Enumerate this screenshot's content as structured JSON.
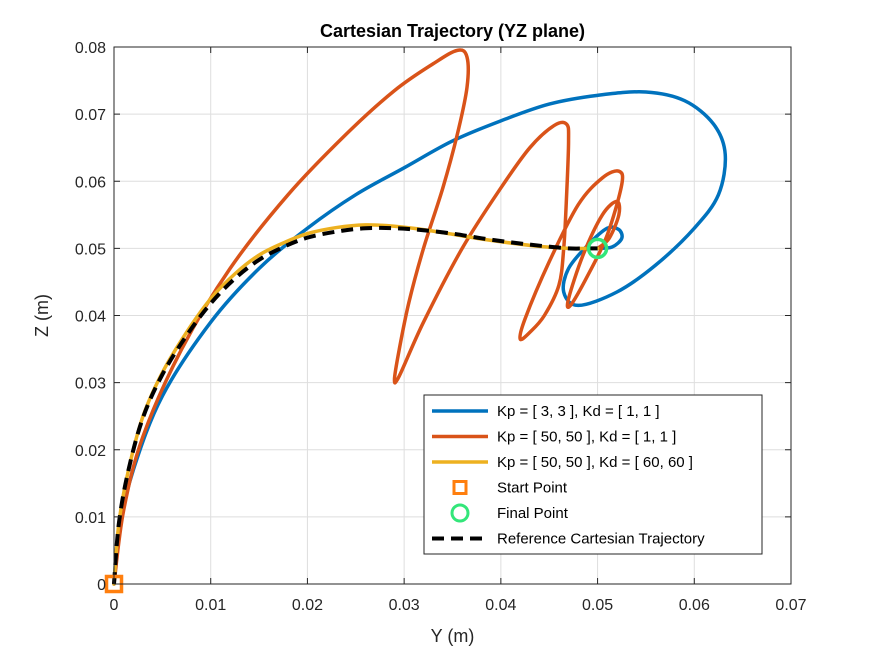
{
  "chart_data": {
    "type": "line",
    "title": "Cartesian Trajectory (YZ plane)",
    "xlabel": "Y (m)",
    "ylabel": "Z (m)",
    "xlim": [
      0,
      0.07
    ],
    "ylim": [
      0,
      0.08
    ],
    "xticks": [
      "0",
      "0.01",
      "0.02",
      "0.03",
      "0.04",
      "0.05",
      "0.06",
      "0.07"
    ],
    "yticks": [
      "0",
      "0.01",
      "0.02",
      "0.03",
      "0.04",
      "0.05",
      "0.06",
      "0.07",
      "0.08"
    ],
    "grid": true,
    "legend_position": "bottom-right",
    "series": [
      {
        "name": "Kp = [ 3, 3 ], Kd = [ 1, 1 ]",
        "color": "#0072BD",
        "style": "solid",
        "x": [
          0,
          0.0005,
          0.002,
          0.005,
          0.01,
          0.015,
          0.02,
          0.025,
          0.03,
          0.035,
          0.04,
          0.045,
          0.05,
          0.055,
          0.059,
          0.062,
          0.0632,
          0.0625,
          0.06,
          0.056,
          0.052,
          0.048,
          0.0465,
          0.047,
          0.049,
          0.051,
          0.0522,
          0.0525,
          0.0515,
          0.05
        ],
        "y": [
          0,
          0.008,
          0.017,
          0.028,
          0.039,
          0.047,
          0.053,
          0.058,
          0.062,
          0.066,
          0.069,
          0.0715,
          0.0728,
          0.0733,
          0.072,
          0.0685,
          0.064,
          0.058,
          0.053,
          0.0475,
          0.0435,
          0.0415,
          0.0435,
          0.047,
          0.0505,
          0.053,
          0.0528,
          0.0515,
          0.0502,
          0.05
        ]
      },
      {
        "name": "Kp = [ 50, 50 ], Kd = [ 1, 1 ]",
        "color": "#D95319",
        "style": "solid",
        "x": [
          0,
          0.001,
          0.003,
          0.007,
          0.012,
          0.018,
          0.024,
          0.029,
          0.033,
          0.0355,
          0.0365,
          0.0365,
          0.0355,
          0.034,
          0.032,
          0.0305,
          0.0295,
          0.029,
          0.0295,
          0.032,
          0.036,
          0.04,
          0.043,
          0.0455,
          0.0468,
          0.047,
          0.0468,
          0.0465,
          0.046,
          0.0445,
          0.043,
          0.042,
          0.0425,
          0.045,
          0.048,
          0.0505,
          0.0522,
          0.0525,
          0.051,
          0.049,
          0.0472,
          0.047,
          0.0485,
          0.0505,
          0.052,
          0.0522,
          0.0512,
          0.05
        ],
        "y": [
          0,
          0.011,
          0.022,
          0.035,
          0.047,
          0.058,
          0.067,
          0.0735,
          0.0775,
          0.0795,
          0.0785,
          0.074,
          0.067,
          0.059,
          0.05,
          0.042,
          0.035,
          0.0305,
          0.031,
          0.039,
          0.05,
          0.059,
          0.065,
          0.0683,
          0.0685,
          0.066,
          0.058,
          0.05,
          0.0445,
          0.04,
          0.0375,
          0.0365,
          0.0395,
          0.048,
          0.0565,
          0.0605,
          0.0615,
          0.0595,
          0.052,
          0.046,
          0.0415,
          0.0425,
          0.049,
          0.055,
          0.057,
          0.055,
          0.0515,
          0.05
        ]
      },
      {
        "name": "Kp = [ 50, 50 ], Kd = [ 60, 60 ]",
        "color": "#EDB120",
        "style": "solid",
        "x": [
          0,
          0.0005,
          0.0015,
          0.003,
          0.005,
          0.0075,
          0.01,
          0.0125,
          0.015,
          0.0175,
          0.02,
          0.023,
          0.026,
          0.029,
          0.032,
          0.035,
          0.038,
          0.041,
          0.044,
          0.047,
          0.049,
          0.05
        ],
        "y": [
          0,
          0.009,
          0.017,
          0.025,
          0.0315,
          0.0375,
          0.0425,
          0.0462,
          0.049,
          0.0508,
          0.0522,
          0.0531,
          0.0535,
          0.0533,
          0.0528,
          0.0521,
          0.0514,
          0.0508,
          0.0503,
          0.05,
          0.05,
          0.05
        ]
      },
      {
        "name": "Reference Cartesian Trajectory",
        "color": "#000000",
        "style": "dashed",
        "x": [
          0,
          0.0005,
          0.0015,
          0.003,
          0.005,
          0.0075,
          0.01,
          0.0125,
          0.015,
          0.0175,
          0.02,
          0.023,
          0.026,
          0.029,
          0.032,
          0.035,
          0.038,
          0.041,
          0.044,
          0.047,
          0.049,
          0.05
        ],
        "y": [
          0,
          0.009,
          0.017,
          0.0248,
          0.0312,
          0.037,
          0.0418,
          0.0455,
          0.0483,
          0.0502,
          0.0516,
          0.0525,
          0.053,
          0.053,
          0.0527,
          0.0522,
          0.0515,
          0.0509,
          0.0504,
          0.05,
          0.05,
          0.05
        ]
      }
    ],
    "markers": [
      {
        "name": "Start Point",
        "shape": "square",
        "color": "#FF7F0E",
        "x": 0,
        "y": 0
      },
      {
        "name": "Final Point",
        "shape": "circle",
        "color": "#33E67A",
        "x": 0.05,
        "y": 0.05
      }
    ],
    "legend": [
      {
        "label": "Kp = [ 3, 3 ], Kd = [ 1, 1 ]",
        "kind": "line",
        "color": "#0072BD"
      },
      {
        "label": "Kp = [ 50, 50 ], Kd = [ 1, 1 ]",
        "kind": "line",
        "color": "#D95319"
      },
      {
        "label": "Kp = [ 50, 50 ], Kd = [ 60, 60 ]",
        "kind": "line",
        "color": "#EDB120"
      },
      {
        "label": "Start Point",
        "kind": "square",
        "color": "#FF7F0E"
      },
      {
        "label": "Final Point",
        "kind": "circle",
        "color": "#33E67A"
      },
      {
        "label": "Reference Cartesian Trajectory",
        "kind": "dashed",
        "color": "#000000"
      }
    ]
  }
}
